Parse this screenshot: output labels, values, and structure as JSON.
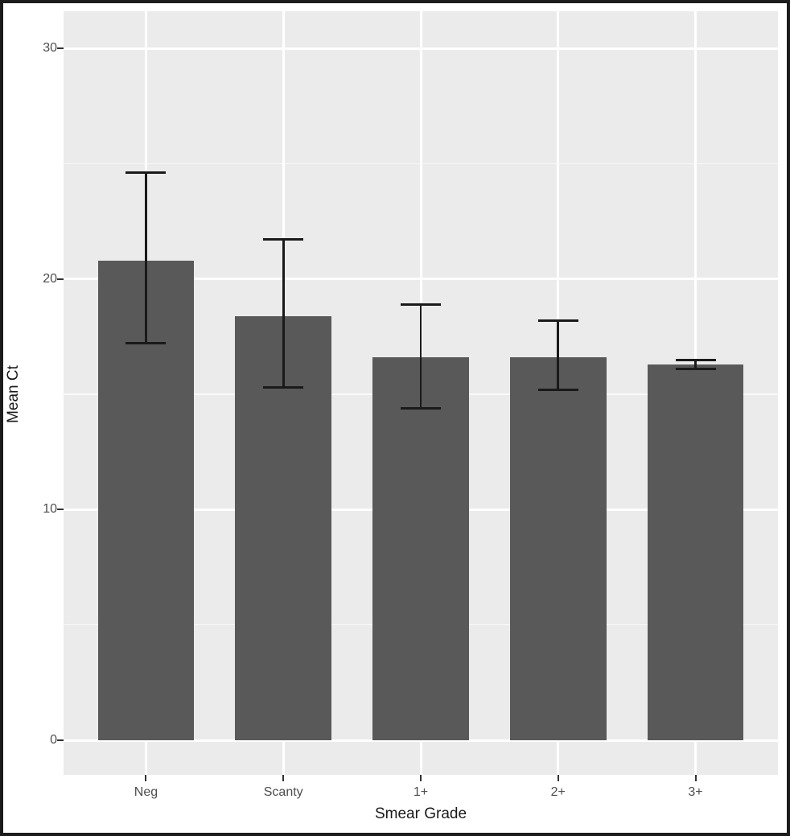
{
  "figure": {
    "border_color": "#1c1c1c",
    "background": "#ffffff"
  },
  "chart_data": {
    "type": "bar",
    "title": "",
    "xlabel": "Smear Grade",
    "ylabel": "Mean Ct",
    "categories": [
      "Neg",
      "Scanty",
      "1+",
      "2+",
      "3+"
    ],
    "values": [
      20.8,
      18.4,
      16.6,
      16.6,
      16.3
    ],
    "error_upper": [
      24.6,
      21.7,
      18.9,
      18.2,
      16.5
    ],
    "error_lower": [
      17.2,
      15.3,
      14.4,
      15.2,
      16.1
    ],
    "y_ticks": [
      0,
      10,
      20,
      30
    ],
    "ylim": [
      -1.5,
      31.6
    ],
    "grid": true,
    "legend": false,
    "style": "ggplot2",
    "colors": {
      "bar_fill": "#595959",
      "panel_bg": "#ebebeb",
      "gridline": "#ffffff",
      "error_bar": "#1a1a1a",
      "tick_label": "#4d4d4d",
      "axis_title": "#1a1a1a"
    }
  }
}
